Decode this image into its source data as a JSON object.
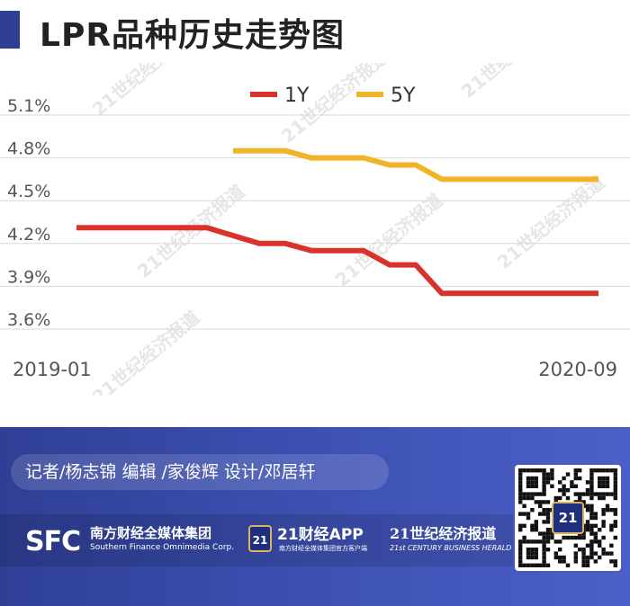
{
  "title": "LPR品种历史走势图",
  "chart_data": {
    "type": "line",
    "title": "LPR品种历史走势图",
    "xlabel": "",
    "ylabel": "",
    "x_tick_labels": [
      "2019-01",
      "2020-09"
    ],
    "y_tick_labels": [
      "5.1%",
      "4.8%",
      "4.5%",
      "4.2%",
      "3.9%",
      "3.6%"
    ],
    "y_ticks": [
      5.1,
      4.8,
      4.5,
      4.2,
      3.9,
      3.6
    ],
    "ylim": [
      3.6,
      5.1
    ],
    "x_range": [
      0,
      20
    ],
    "grid": true,
    "legend_position": "top-center",
    "series": [
      {
        "name": "1Y",
        "color": "#d9322b",
        "points": [
          [
            0,
            4.31
          ],
          [
            5,
            4.31
          ],
          [
            7,
            4.2
          ],
          [
            8,
            4.2
          ],
          [
            9,
            4.15
          ],
          [
            11,
            4.15
          ],
          [
            12,
            4.05
          ],
          [
            13,
            4.05
          ],
          [
            14,
            3.85
          ],
          [
            20,
            3.85
          ]
        ]
      },
      {
        "name": "5Y",
        "color": "#f0b429",
        "points": [
          [
            6,
            4.85
          ],
          [
            8,
            4.85
          ],
          [
            9,
            4.8
          ],
          [
            11,
            4.8
          ],
          [
            12,
            4.75
          ],
          [
            13,
            4.75
          ],
          [
            14,
            4.65
          ],
          [
            20,
            4.65
          ]
        ]
      }
    ]
  },
  "watermark": "21世纪经济报道",
  "footer": {
    "credits": "记者/杨志锦  编辑 /家俊辉  设计/邓居轩",
    "sfc_logo": "SFC",
    "sfc_name_cn": "南方财经全媒体集团",
    "sfc_name_en": "Southern Finance Omnimedia Corp.",
    "app_badge": "21",
    "app_name": "21财经APP",
    "app_sub": "南方财经全媒体集团官方客户端",
    "herald_cn": "21世纪经济报道",
    "herald_en": "21st CENTURY BUSINESS HERALD",
    "qr_badge": "21"
  }
}
